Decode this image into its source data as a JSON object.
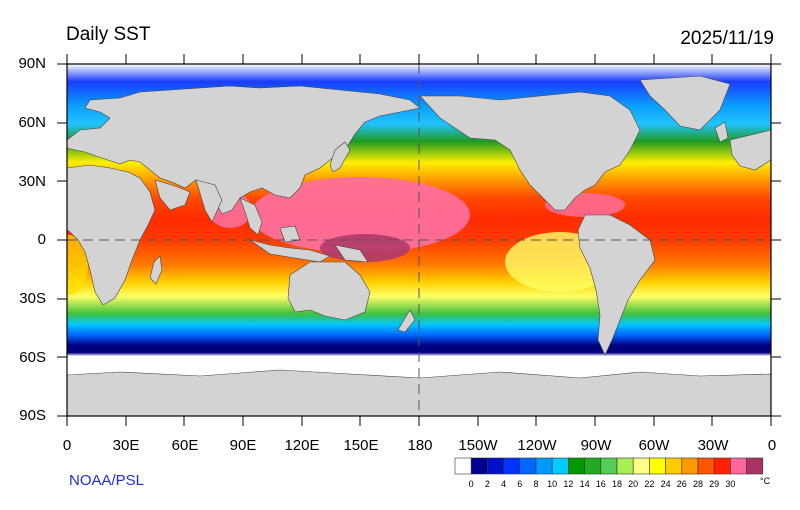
{
  "header": {
    "title": "Daily SST",
    "date": "2025/11/19"
  },
  "credit": "NOAA/PSL",
  "map": {
    "projection": "cylindrical-equidistant",
    "variable": "sea surface temperature",
    "lat_labels": [
      "90N",
      "60N",
      "30N",
      "0",
      "30S",
      "60S",
      "90S"
    ],
    "lon_labels": [
      "0",
      "30E",
      "60E",
      "90E",
      "120E",
      "150E",
      "180",
      "150W",
      "120W",
      "90W",
      "60W",
      "30W",
      "0"
    ],
    "land_color": "#d3d3d3",
    "ice_color": "#ffffff"
  },
  "colorbar": {
    "unit": "°C",
    "labels": [
      "0",
      "2",
      "4",
      "6",
      "8",
      "10",
      "12",
      "14",
      "16",
      "18",
      "20",
      "22",
      "24",
      "26",
      "28",
      "29",
      "30"
    ],
    "colors": [
      "#ffffff",
      "#00008f",
      "#0011cc",
      "#0033ff",
      "#0066ff",
      "#0099ff",
      "#00ccff",
      "#009a00",
      "#22aa22",
      "#55cc55",
      "#aaee55",
      "#ffff88",
      "#ffff00",
      "#ffcc00",
      "#ff9900",
      "#ff5500",
      "#ff2200",
      "#ff6699",
      "#aa3366"
    ]
  }
}
